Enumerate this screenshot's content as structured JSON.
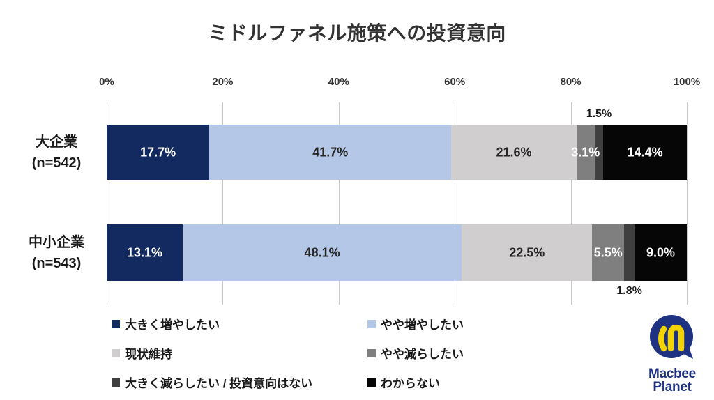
{
  "title": "ミドルファネル施策への投資意向",
  "chart_data": {
    "type": "bar",
    "orientation": "horizontal-stacked",
    "title": "ミドルファネル施策への投資意向",
    "x_axis": {
      "ticks": [
        "0%",
        "20%",
        "40%",
        "60%",
        "80%",
        "100%"
      ],
      "range": [
        0,
        100
      ],
      "grid": true
    },
    "categories": [
      {
        "label": "大企業",
        "n_label": "(n=542)"
      },
      {
        "label": "中小企業",
        "n_label": "(n=543)"
      }
    ],
    "series": [
      {
        "name": "大きく増やしたい",
        "color": "#132A61",
        "label_color": "#ffffff",
        "label_position": "inside",
        "values": [
          17.7,
          13.1
        ]
      },
      {
        "name": "やや増やしたい",
        "color": "#B4C7E7",
        "label_color": "#262626",
        "label_position": "inside",
        "values": [
          41.7,
          48.1
        ]
      },
      {
        "name": "現状維持",
        "color": "#D0CECE",
        "label_color": "#262626",
        "label_position": "inside",
        "values": [
          21.6,
          22.5
        ]
      },
      {
        "name": "やや減らしたい",
        "color": "#7F7F7F",
        "label_color": "#ffffff",
        "label_position": "inside",
        "values": [
          3.1,
          5.5
        ]
      },
      {
        "name": "大きく減らしたい / 投資意向はない",
        "color": "#3F3F3F",
        "label_color": "#1a1a1a",
        "label_position": "outside",
        "outside_side": [
          "above",
          "below"
        ],
        "values": [
          1.5,
          1.8
        ]
      },
      {
        "name": "わからない",
        "color": "#060606",
        "label_color": "#ffffff",
        "label_position": "inside",
        "values": [
          14.4,
          9.0
        ]
      }
    ],
    "legend_position": "bottom",
    "value_label_format": "0.0%"
  },
  "logo": {
    "line1": "Macbee",
    "line2": "Planet",
    "blue": "#1F3282",
    "yellow": "#F3D402"
  }
}
